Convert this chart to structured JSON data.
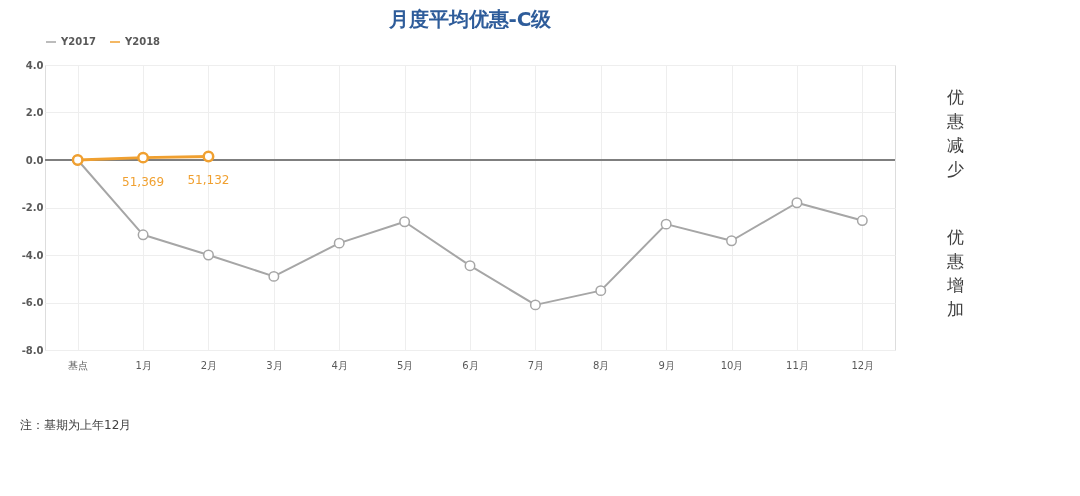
{
  "chart_data": {
    "type": "line",
    "title": "月度平均优惠-C级",
    "categories": [
      "基点",
      "1月",
      "2月",
      "3月",
      "4月",
      "5月",
      "6月",
      "7月",
      "8月",
      "9月",
      "10月",
      "11月",
      "12月"
    ],
    "series": [
      {
        "name": "Y2017",
        "color": "#a6a6a6",
        "values": [
          0,
          -3.15,
          -4.0,
          -4.9,
          -3.5,
          -2.6,
          -4.45,
          -6.1,
          -5.5,
          -2.7,
          -3.4,
          -1.8,
          -2.55
        ]
      },
      {
        "name": "Y2018",
        "color": "#f0a030",
        "values": [
          0,
          0.1,
          0.15,
          null,
          null,
          null,
          null,
          null,
          null,
          null,
          null,
          null,
          null
        ]
      }
    ],
    "ylim": [
      -8,
      4
    ],
    "yticks": [
      {
        "value": -8,
        "label": "-8.0"
      },
      {
        "value": -6,
        "label": "-6.0"
      },
      {
        "value": -4,
        "label": "-4.0"
      },
      {
        "value": -2,
        "label": "-2.0"
      },
      {
        "value": 0,
        "label": "0.0"
      },
      {
        "value": 2,
        "label": "2.0"
      },
      {
        "value": 4,
        "label": "4.0"
      }
    ],
    "ref_lines": [
      {
        "axis": "y",
        "value": 0,
        "color": "#7f7f7f"
      }
    ],
    "grid": true,
    "legend": "top",
    "marker": "circle",
    "annotations": [
      "优惠减少",
      "优惠增加",
      "注：基期为上年12月",
      "51,369",
      "51,132"
    ]
  }
}
